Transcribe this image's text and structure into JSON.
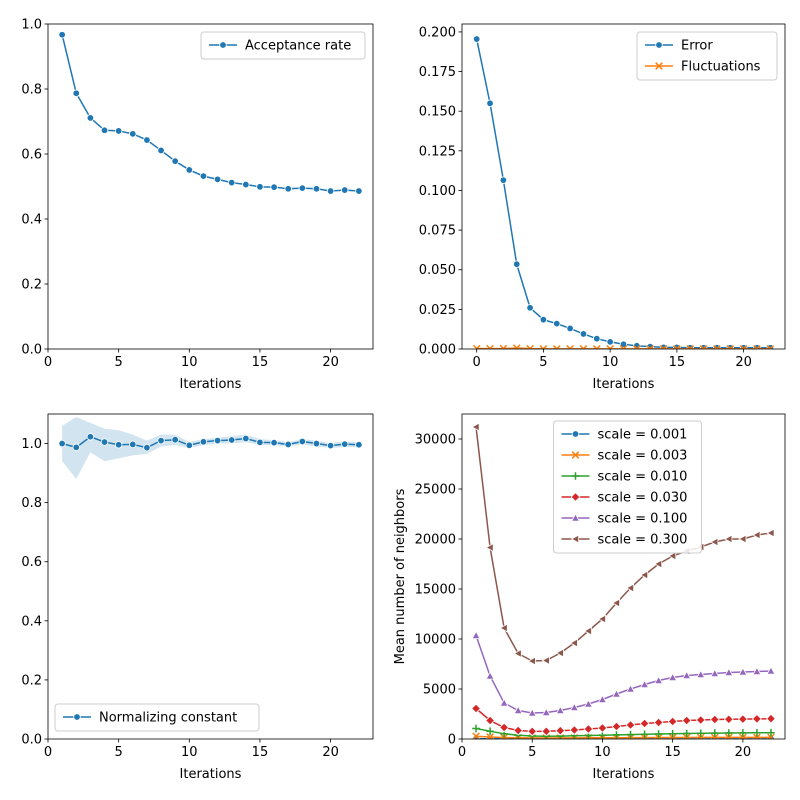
{
  "chart_data": [
    {
      "type": "line",
      "xlabel": "Iterations",
      "ylabel": "",
      "xlim": [
        0,
        23
      ],
      "ylim": [
        0,
        1.0
      ],
      "xticks": [
        0,
        5,
        10,
        15,
        20
      ],
      "yticks": [
        0.0,
        0.2,
        0.4,
        0.6,
        0.8,
        1.0
      ],
      "ytick_labels": [
        "0.0",
        "0.2",
        "0.4",
        "0.6",
        "0.8",
        "1.0"
      ],
      "legend_position": "top-right",
      "series": [
        {
          "name": "Acceptance rate",
          "color": "#1f77b4",
          "marker": "circle",
          "x": [
            1,
            2,
            3,
            4,
            5,
            6,
            7,
            8,
            9,
            10,
            11,
            12,
            13,
            14,
            15,
            16,
            17,
            18,
            19,
            20,
            21,
            22
          ],
          "values": [
            0.967,
            0.787,
            0.711,
            0.673,
            0.671,
            0.662,
            0.643,
            0.611,
            0.578,
            0.551,
            0.532,
            0.522,
            0.512,
            0.506,
            0.499,
            0.498,
            0.493,
            0.495,
            0.493,
            0.486,
            0.489,
            0.486
          ]
        }
      ]
    },
    {
      "type": "line",
      "xlabel": "Iterations",
      "ylabel": "",
      "xlim": [
        -1.1,
        23.1
      ],
      "ylim": [
        0,
        0.205
      ],
      "xticks": [
        0,
        5,
        10,
        15,
        20
      ],
      "yticks": [
        0.0,
        0.025,
        0.05,
        0.075,
        0.1,
        0.125,
        0.15,
        0.175,
        0.2
      ],
      "ytick_labels": [
        "0.000",
        "0.025",
        "0.050",
        "0.075",
        "0.100",
        "0.125",
        "0.150",
        "0.175",
        "0.200"
      ],
      "legend_position": "top-right",
      "series": [
        {
          "name": "Error",
          "color": "#1f77b4",
          "marker": "circle",
          "x": [
            0,
            1,
            2,
            3,
            4,
            5,
            6,
            7,
            8,
            9,
            10,
            11,
            12,
            13,
            14,
            15,
            16,
            17,
            18,
            19,
            20,
            21,
            22
          ],
          "values": [
            0.1955,
            0.155,
            0.1065,
            0.0535,
            0.026,
            0.0185,
            0.016,
            0.013,
            0.0095,
            0.0065,
            0.0045,
            0.003,
            0.002,
            0.0015,
            0.001,
            0.001,
            0.0008,
            0.0008,
            0.0008,
            0.0008,
            0.0008,
            0.0008,
            0.0008
          ]
        },
        {
          "name": "Fluctuations",
          "color": "#ff7f0e",
          "marker": "x",
          "x": [
            0,
            1,
            2,
            3,
            4,
            5,
            6,
            7,
            8,
            9,
            10,
            11,
            12,
            13,
            14,
            15,
            16,
            17,
            18,
            19,
            20,
            21,
            22
          ],
          "values": [
            0.0003,
            0.0002,
            0.0003,
            0.0006,
            0.0002,
            0.0001,
            0.0001,
            0.0001,
            0.0001,
            0.0001,
            0.0001,
            0.0001,
            0.0001,
            0.0001,
            0.0001,
            0.0001,
            0.0001,
            0.0001,
            0.0001,
            0.0001,
            0.0001,
            0.0001,
            0.0001
          ]
        }
      ]
    },
    {
      "type": "line",
      "xlabel": "Iterations",
      "ylabel": "",
      "xlim": [
        0,
        23
      ],
      "ylim": [
        0,
        1.1
      ],
      "xticks": [
        0,
        5,
        10,
        15,
        20
      ],
      "yticks": [
        0.0,
        0.2,
        0.4,
        0.6,
        0.8,
        1.0
      ],
      "ytick_labels": [
        "0.0",
        "0.2",
        "0.4",
        "0.6",
        "0.8",
        "1.0"
      ],
      "legend_position": "bottom-left",
      "series": [
        {
          "name": "Normalizing constant",
          "color": "#1f77b4",
          "marker": "circle",
          "x": [
            1,
            2,
            3,
            4,
            5,
            6,
            7,
            8,
            9,
            10,
            11,
            12,
            13,
            14,
            15,
            16,
            17,
            18,
            19,
            20,
            21,
            22
          ],
          "values": [
            1.0,
            0.987,
            1.023,
            1.005,
            0.996,
            0.997,
            0.986,
            1.01,
            1.013,
            0.994,
            1.006,
            1.01,
            1.012,
            1.017,
            1.004,
            1.003,
            0.997,
            1.007,
            1.0,
            0.993,
            0.998,
            0.996
          ],
          "band_lower": [
            0.94,
            0.88,
            0.97,
            0.94,
            0.95,
            0.96,
            0.965,
            0.99,
            0.995,
            0.985,
            0.995,
            1.0,
            1.0,
            1.005,
            0.995,
            0.995,
            0.99,
            0.997,
            0.99,
            0.985,
            0.988,
            0.988
          ],
          "band_upper": [
            1.06,
            1.09,
            1.07,
            1.05,
            1.045,
            1.03,
            1.01,
            1.03,
            1.03,
            1.005,
            1.015,
            1.02,
            1.025,
            1.03,
            1.015,
            1.012,
            1.005,
            1.015,
            1.01,
            1.002,
            1.008,
            1.004
          ]
        }
      ]
    },
    {
      "type": "line",
      "xlabel": "Iterations",
      "ylabel": "Mean number of neighbors",
      "xlim": [
        0,
        23
      ],
      "ylim": [
        0,
        32500
      ],
      "xticks": [
        0,
        5,
        10,
        15,
        20
      ],
      "yticks": [
        0,
        5000,
        10000,
        15000,
        20000,
        25000,
        30000
      ],
      "ytick_labels": [
        "0",
        "5000",
        "10000",
        "15000",
        "20000",
        "25000",
        "30000"
      ],
      "legend_position": "top-center",
      "series": [
        {
          "name": "scale = 0.001",
          "color": "#1f77b4",
          "marker": "circle",
          "x": [
            1,
            2,
            3,
            4,
            5,
            6,
            7,
            8,
            9,
            10,
            11,
            12,
            13,
            14,
            15,
            16,
            17,
            18,
            19,
            20,
            21,
            22
          ],
          "values": [
            30,
            25,
            20,
            18,
            16,
            15,
            15,
            15,
            15,
            15,
            15,
            15,
            15,
            15,
            15,
            15,
            15,
            15,
            15,
            15,
            15,
            15
          ]
        },
        {
          "name": "scale = 0.003",
          "color": "#ff7f0e",
          "marker": "x",
          "x": [
            1,
            2,
            3,
            4,
            5,
            6,
            7,
            8,
            9,
            10,
            11,
            12,
            13,
            14,
            15,
            16,
            17,
            18,
            19,
            20,
            21,
            22
          ],
          "values": [
            280,
            200,
            150,
            120,
            110,
            105,
            110,
            115,
            120,
            125,
            130,
            135,
            140,
            145,
            150,
            155,
            158,
            160,
            162,
            164,
            166,
            168
          ]
        },
        {
          "name": "scale = 0.010",
          "color": "#2ca02c",
          "marker": "plus",
          "x": [
            1,
            2,
            3,
            4,
            5,
            6,
            7,
            8,
            9,
            10,
            11,
            12,
            13,
            14,
            15,
            16,
            17,
            18,
            19,
            20,
            21,
            22
          ],
          "values": [
            1050,
            780,
            520,
            380,
            300,
            280,
            290,
            320,
            350,
            380,
            410,
            440,
            470,
            500,
            530,
            550,
            570,
            590,
            600,
            610,
            620,
            630
          ]
        },
        {
          "name": "scale = 0.030",
          "color": "#d62728",
          "marker": "diamond",
          "x": [
            1,
            2,
            3,
            4,
            5,
            6,
            7,
            8,
            9,
            10,
            11,
            12,
            13,
            14,
            15,
            16,
            17,
            18,
            19,
            20,
            21,
            22
          ],
          "values": [
            3050,
            1850,
            1150,
            850,
            760,
            770,
            830,
            900,
            1000,
            1100,
            1250,
            1400,
            1550,
            1650,
            1750,
            1850,
            1900,
            1950,
            1970,
            1990,
            2010,
            2030
          ]
        },
        {
          "name": "scale = 0.100",
          "color": "#9467bd",
          "marker": "triangle-up",
          "x": [
            1,
            2,
            3,
            4,
            5,
            6,
            7,
            8,
            9,
            10,
            11,
            12,
            13,
            14,
            15,
            16,
            17,
            18,
            19,
            20,
            21,
            22
          ],
          "values": [
            10350,
            6300,
            3600,
            2850,
            2600,
            2650,
            2850,
            3150,
            3500,
            3950,
            4500,
            5000,
            5450,
            5850,
            6150,
            6350,
            6450,
            6550,
            6650,
            6700,
            6750,
            6800
          ]
        },
        {
          "name": "scale = 0.300",
          "color": "#8c564b",
          "marker": "triangle-left",
          "x": [
            1,
            2,
            3,
            4,
            5,
            6,
            7,
            8,
            9,
            10,
            11,
            12,
            13,
            14,
            15,
            16,
            17,
            18,
            19,
            20,
            21,
            22
          ],
          "values": [
            31200,
            19150,
            11100,
            8550,
            7800,
            7850,
            8600,
            9600,
            10800,
            12000,
            13600,
            15100,
            16400,
            17500,
            18300,
            18800,
            19200,
            19700,
            20000,
            20000,
            20400,
            20600
          ]
        }
      ]
    }
  ]
}
